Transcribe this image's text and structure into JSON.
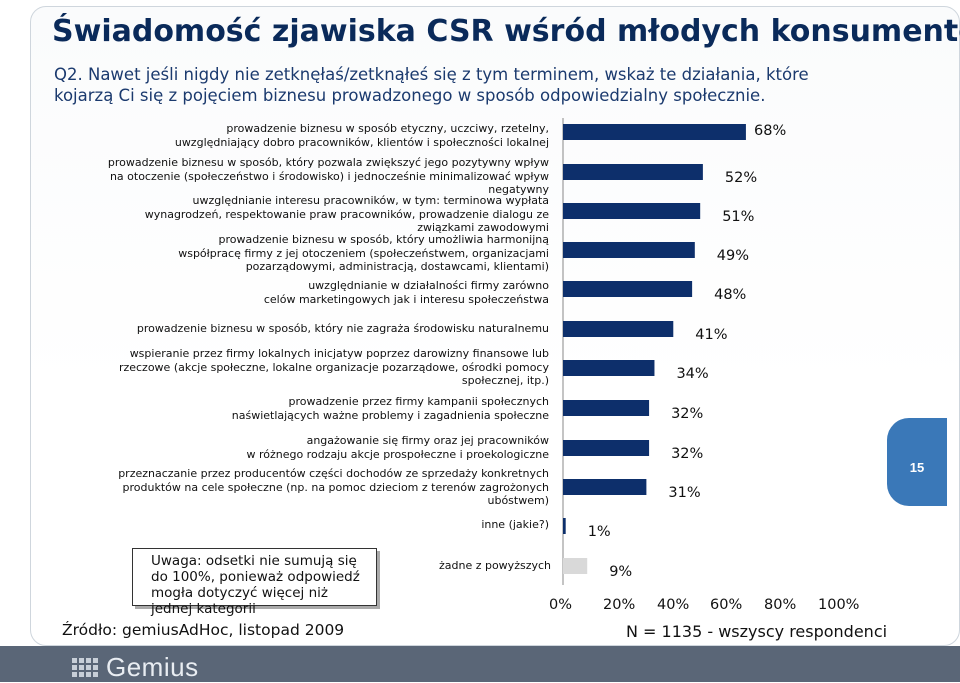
{
  "title": "Świadomość zjawiska CSR wśród młodych konsumentów",
  "question": "Q2. Nawet jeśli nigdy nie zetknęłaś/zetknąłeś się z tym terminem, wskaż te działania, które kojarzą Ci się z pojęciem biznesu prowadzonego w sposób odpowiedzialny społecznie.",
  "note": "Uwaga: odsetki nie sumują się do 100%, ponieważ odpowiedź mogła dotyczyć więcej niż jednej kategorii",
  "source": "Źródło: gemiusAdHoc, listopad 2009",
  "sample": "N = 1135 - wszyscy respondenci",
  "logo": "Gemius",
  "page_number": "15",
  "colors": {
    "bar": "#0d2f6b",
    "bar_light": "#d9d9d9",
    "title": "#0a2a5a"
  },
  "chart_data": {
    "type": "bar",
    "orientation": "horizontal",
    "categories": [
      "prowadzenie biznesu w sposób  etyczny, uczciwy, rzetelny,\nuwzględniający dobro pracowników,  klientów i społeczności lokalnej",
      "prowadzenie biznesu w  sposób, który pozwala zwiększyć jego  pozytywny wpływ\nna otoczenie (społeczeństwo i środowisko) i jednocześnie  minimalizować wpływ\nnegatywny",
      "uwzględnianie  interesu pracowników, w tym:  terminowa wypłata\nwynagrodzeń, respektowanie praw pracowników, prowadzenie  dialogu ze\nzwiązkami zawodowymi",
      "prowadzenie  biznesu w sposób, który umożliwia harmonijną\nwspółpracę firmy z jej otoczeniem (społeczeństwem, organizacjami\npozarządowymi, administracją, dostawcami, klientami)",
      "uwzględnianie w działalności  firmy zarówno\ncelów marketingowych  jak i interesu społeczeństwa",
      "prowadzenie  biznesu w sposób, który nie zagraża  środowisku naturalnemu",
      "wspieranie  przez firmy lokalnych inicjatyw  poprzez darowizny finansowe lub\nrzeczowe (akcje społeczne, lokalne  organizacje pozarządowe, ośrodki pomocy\nspołecznej, itp.)",
      "prowadzenie  przez firmy kampanii społecznych\nnaświetlających ważne problemy i zagadnienia społeczne",
      "angażowanie się firmy oraz jej pracowników\nw różnego rodzaju akcje prospołeczne i proekologiczne",
      "przeznaczanie  przez producentów części dochodów  ze sprzedaży konkretnych\nproduktów na  cele społeczne (np. na pomoc dzieciom z terenów zagrożonych\nubóstwem)",
      "inne (jakie?)",
      "żadne z  powyższych"
    ],
    "values": [
      68,
      52,
      51,
      49,
      48,
      41,
      34,
      32,
      32,
      31,
      1,
      9
    ],
    "value_labels": [
      "68%",
      "52%",
      "51%",
      "49%",
      "48%",
      "41%",
      "34%",
      "32%",
      "32%",
      "31%",
      "1%",
      "9%"
    ],
    "xlim": [
      0,
      100
    ],
    "x_ticks": [
      "0%",
      "20%",
      "40%",
      "60%",
      "80%",
      "100%"
    ],
    "grid": false,
    "legend": "none"
  }
}
